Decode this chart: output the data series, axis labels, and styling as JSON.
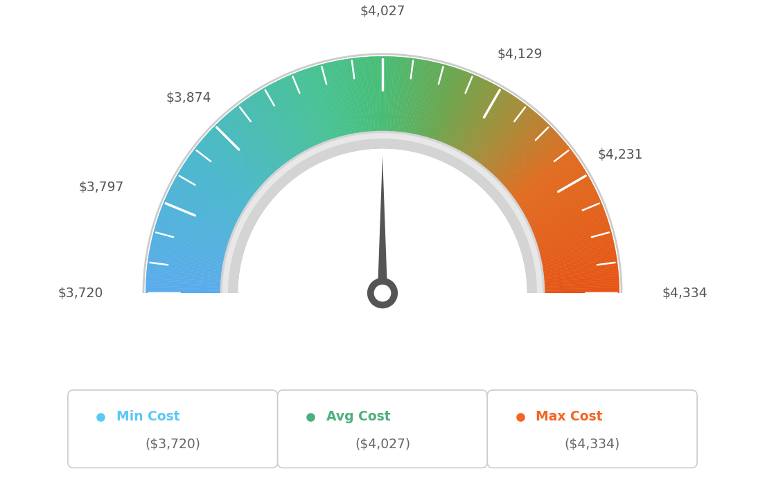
{
  "min_val": 3720,
  "max_val": 4334,
  "avg_val": 4027,
  "tick_labels": [
    "$3,720",
    "$3,797",
    "$3,874",
    "$4,027",
    "$4,129",
    "$4,231",
    "$4,334"
  ],
  "tick_values": [
    3720,
    3797,
    3874,
    4027,
    4129,
    4231,
    4334
  ],
  "legend_labels": [
    "Min Cost",
    "Avg Cost",
    "Max Cost"
  ],
  "legend_values": [
    "($3,720)",
    "($4,027)",
    "($4,334)"
  ],
  "legend_colors": [
    "#5bc8f5",
    "#4caf7d",
    "#f26522"
  ],
  "bg_color": "#ffffff",
  "needle_color": "#555555",
  "color_stops": [
    [
      0.0,
      [
        0.35,
        0.67,
        0.93
      ]
    ],
    [
      0.2,
      [
        0.29,
        0.72,
        0.8
      ]
    ],
    [
      0.4,
      [
        0.28,
        0.76,
        0.58
      ]
    ],
    [
      0.5,
      [
        0.28,
        0.74,
        0.46
      ]
    ],
    [
      0.6,
      [
        0.42,
        0.65,
        0.3
      ]
    ],
    [
      0.7,
      [
        0.65,
        0.55,
        0.22
      ]
    ],
    [
      0.8,
      [
        0.88,
        0.42,
        0.12
      ]
    ],
    [
      1.0,
      [
        0.9,
        0.33,
        0.08
      ]
    ]
  ]
}
